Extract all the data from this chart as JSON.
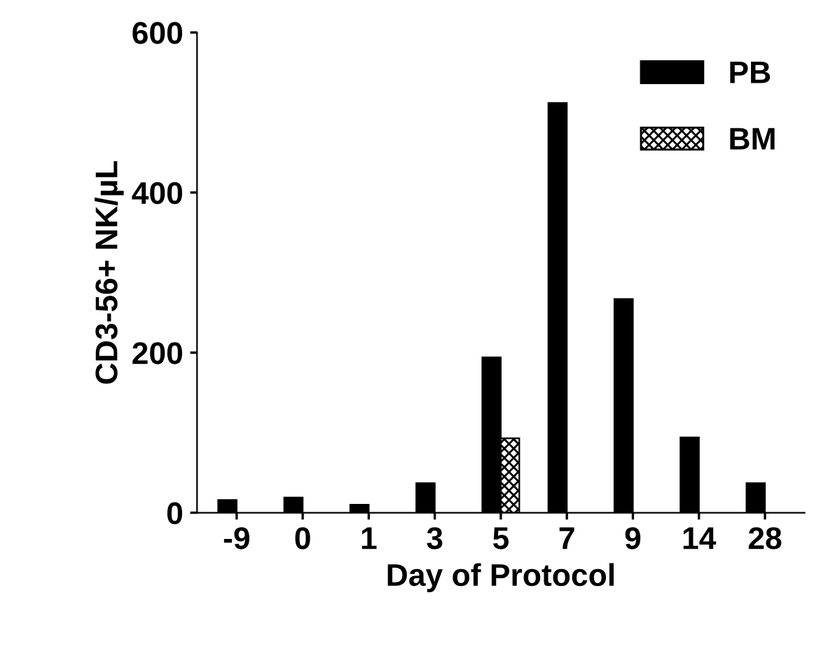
{
  "chart_data": {
    "type": "bar",
    "xlabel": "Day of Protocol",
    "ylabel": "CD3-56+ NK/µL",
    "categories": [
      "-9",
      "0",
      "1",
      "3",
      "5",
      "7",
      "9",
      "14",
      "28"
    ],
    "series": [
      {
        "name": "PB",
        "color": "#000000",
        "values": [
          16,
          19,
          10,
          37,
          194,
          512,
          267,
          94,
          37
        ]
      },
      {
        "name": "BM",
        "color": "#000000",
        "values": [
          null,
          null,
          null,
          null,
          93,
          null,
          null,
          null,
          null
        ]
      }
    ],
    "ylim": [
      0,
      600
    ],
    "yticks": [
      0,
      200,
      400,
      600
    ],
    "legend": "top right",
    "grid": false
  }
}
